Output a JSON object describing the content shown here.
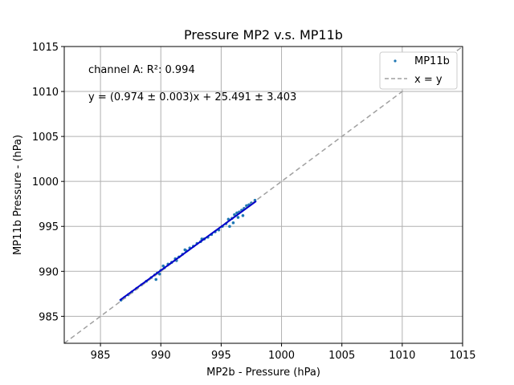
{
  "chart_data": {
    "type": "scatter",
    "title": "Pressure MP2 v.s. MP11b",
    "xlabel": "MP2b - Pressure (hPa)",
    "ylabel": "MP11b Pressure - (hPa)",
    "xlim": [
      982,
      1015
    ],
    "ylim": [
      982,
      1015
    ],
    "xticks": [
      "985",
      "990",
      "995",
      "1000",
      "1005",
      "1010",
      "1015"
    ],
    "yticks": [
      "985",
      "990",
      "995",
      "1000",
      "1005",
      "1010",
      "1015"
    ],
    "grid": true,
    "legend_position": "top-right",
    "annotations": [
      "channel A: R²: 0.994",
      "y = (0.974 ± 0.003)x + 25.491 ± 3.403"
    ],
    "series": [
      {
        "name": "MP11b",
        "kind": "scatter",
        "color": "#1f77b4",
        "x": [
          986.7,
          987.0,
          987.3,
          987.6,
          988.0,
          988.4,
          988.8,
          989.2,
          989.6,
          989.5,
          989.7,
          990.0,
          990.3,
          990.6,
          990.9,
          991.2,
          991.5,
          991.8,
          992.1,
          992.4,
          992.7,
          993.0,
          993.3,
          993.6,
          993.9,
          994.2,
          994.5,
          994.8,
          995.1,
          995.4,
          995.6,
          995.9,
          996.1,
          996.3,
          996.5,
          996.7,
          996.9,
          997.1,
          997.3,
          997.5,
          997.8,
          996.0,
          996.4,
          995.7,
          996.8,
          992.0,
          991.3,
          990.2,
          993.4,
          989.9
        ],
        "y": [
          986.8,
          987.1,
          987.4,
          987.7,
          988.1,
          988.5,
          988.9,
          989.3,
          989.1,
          989.6,
          989.8,
          990.1,
          990.4,
          990.8,
          991.0,
          991.4,
          991.6,
          991.9,
          992.3,
          992.6,
          992.8,
          993.1,
          993.3,
          993.6,
          993.8,
          994.1,
          994.4,
          994.6,
          995.0,
          995.3,
          995.8,
          995.9,
          996.3,
          996.5,
          996.6,
          996.8,
          997.0,
          997.3,
          997.4,
          997.6,
          997.9,
          995.4,
          996.0,
          995.0,
          996.2,
          992.4,
          991.2,
          990.6,
          993.6,
          989.7
        ]
      },
      {
        "name": "x = y",
        "kind": "line",
        "style": "dashed",
        "color": "#a0a0a0",
        "x": [
          982,
          1015
        ],
        "y": [
          982,
          1015
        ]
      },
      {
        "kind": "line",
        "color": "#0000cc",
        "x": [
          986.6,
          997.9
        ],
        "y": [
          986.79,
          997.8
        ]
      }
    ]
  }
}
